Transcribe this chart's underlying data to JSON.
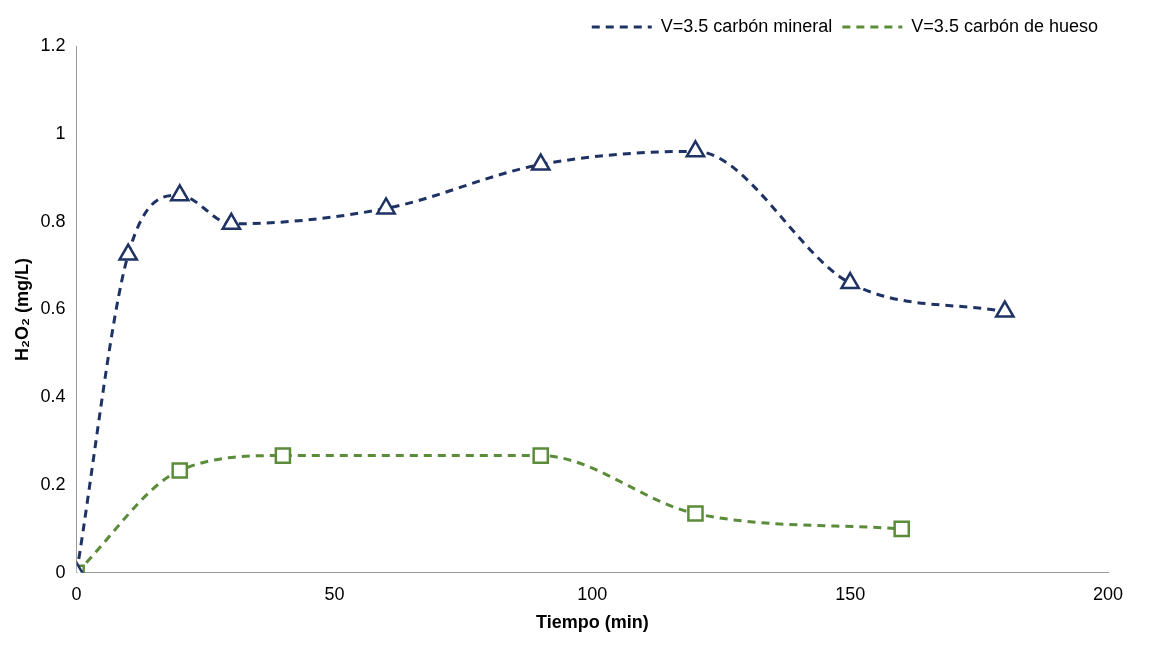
{
  "chart_data": {
    "type": "line",
    "xlabel": "Tiempo (min)",
    "ylabel": "H₂O₂ (mg/L)",
    "xlim": [
      0,
      200
    ],
    "xticks": [
      0,
      50,
      100,
      150,
      200
    ],
    "ylim": [
      0,
      1.2
    ],
    "yticks": [
      0,
      0.2,
      0.4,
      0.6,
      0.8,
      1,
      1.2
    ],
    "grid": false,
    "legend": "top right",
    "line_style": "dashed",
    "series": [
      {
        "name": "V=3.5 carbón mineral",
        "color": "#1f3264",
        "marker": "triangle",
        "x": [
          0,
          10,
          20,
          30,
          60,
          90,
          120,
          150,
          180
        ],
        "values": [
          0,
          0.725,
          0.86,
          0.795,
          0.83,
          0.93,
          0.96,
          0.66,
          0.595
        ]
      },
      {
        "name": "V=3.5 carbón de hueso",
        "color": "#5b8c3a",
        "marker": "square",
        "x": [
          0,
          20,
          40,
          90,
          120,
          160
        ],
        "values": [
          0,
          0.233,
          0.267,
          0.267,
          0.135,
          0.1
        ]
      }
    ]
  }
}
